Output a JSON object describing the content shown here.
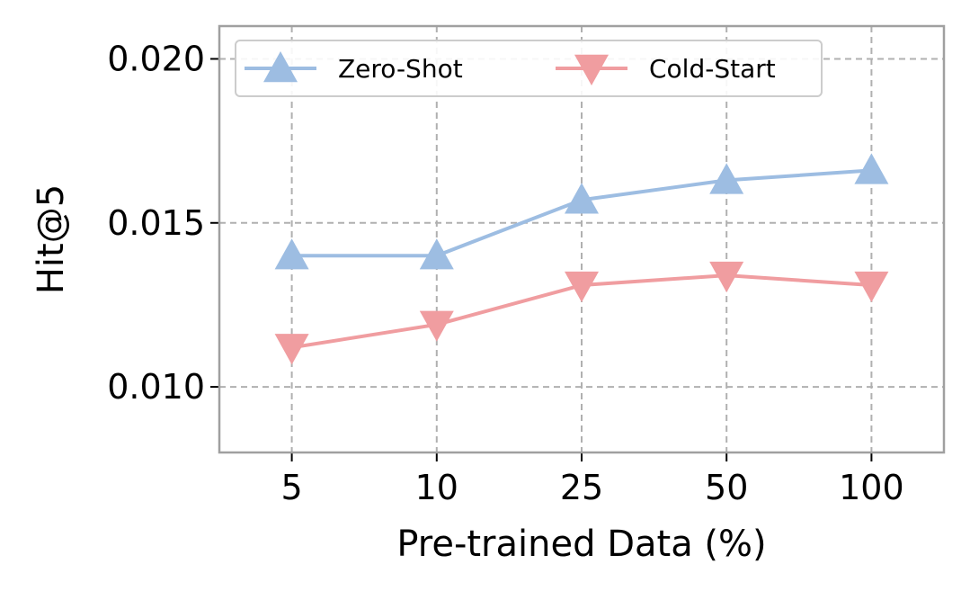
{
  "chart_data": {
    "type": "line",
    "title": "",
    "xlabel": "Pre-trained Data (%)",
    "ylabel": "Hit@5",
    "categories": [
      "5",
      "10",
      "25",
      "50",
      "100"
    ],
    "ylim": [
      0.008,
      0.021
    ],
    "yticks": [
      0.01,
      0.015,
      0.02
    ],
    "ytick_labels": [
      "0.010",
      "0.015",
      "0.020"
    ],
    "grid": true,
    "legend_position": "top-left",
    "series": [
      {
        "name": "Zero-Shot",
        "marker": "triangle-up",
        "color": "#9dbde2",
        "values": [
          0.014,
          0.014,
          0.0157,
          0.0163,
          0.0166
        ]
      },
      {
        "name": "Cold-Start",
        "marker": "triangle-down",
        "color": "#f09da0",
        "values": [
          0.0112,
          0.0119,
          0.0131,
          0.0134,
          0.0131
        ]
      }
    ]
  }
}
